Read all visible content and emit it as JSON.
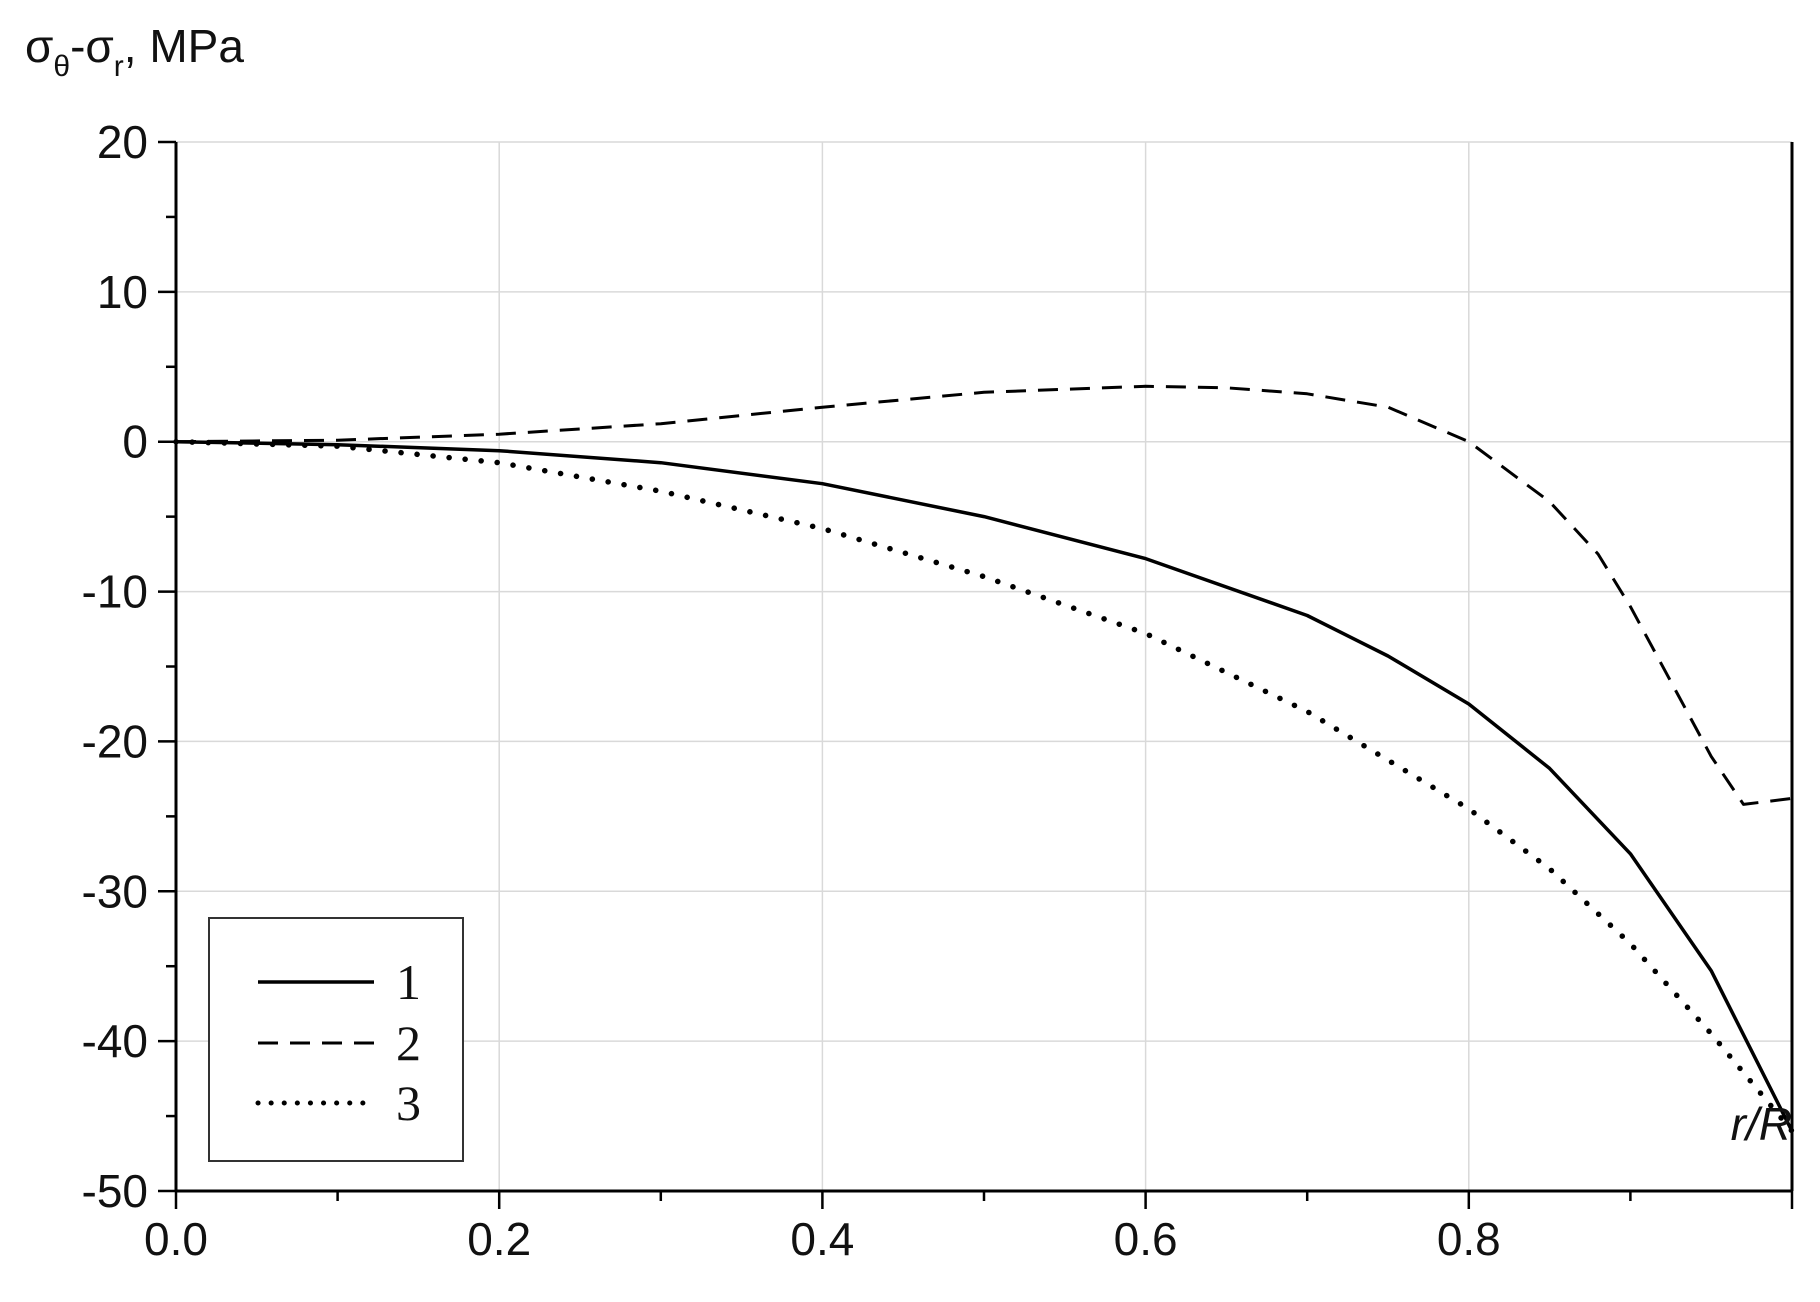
{
  "chart_data": {
    "type": "line",
    "title": "",
    "xlabel": "r/R",
    "ylabel_parts": {
      "sigma1": "σ",
      "sub1": "θ",
      "dash": "-",
      "sigma2": "σ",
      "sub2": "r",
      "unit": ", MPa"
    },
    "xlim": [
      0,
      1
    ],
    "ylim": [
      -50,
      20
    ],
    "x_ticks": [
      0,
      0.2,
      0.4,
      0.6,
      0.8
    ],
    "x_tick_labels": [
      "0.0",
      "0.2",
      "0.4",
      "0.6",
      "0.8"
    ],
    "y_ticks": [
      20,
      10,
      0,
      -10,
      -20,
      -30,
      -40,
      -50
    ],
    "y_tick_labels": [
      "20",
      "10",
      "0",
      "-10",
      "-20",
      "-30",
      "-40",
      "-50"
    ],
    "grid": true,
    "legend_position": "bottom-left",
    "series": [
      {
        "name": "1",
        "style": "solid",
        "x": [
          0,
          0.1,
          0.2,
          0.3,
          0.4,
          0.5,
          0.6,
          0.7,
          0.75,
          0.8,
          0.85,
          0.9,
          0.95,
          1.0
        ],
        "y": [
          0,
          -0.2,
          -0.6,
          -1.4,
          -2.8,
          -5.0,
          -7.8,
          -11.6,
          -14.3,
          -17.5,
          -21.8,
          -27.5,
          -35.3,
          -46.0
        ]
      },
      {
        "name": "2",
        "style": "dashed",
        "x": [
          0,
          0.1,
          0.2,
          0.3,
          0.4,
          0.5,
          0.6,
          0.65,
          0.7,
          0.75,
          0.8,
          0.85,
          0.88,
          0.9,
          0.93,
          0.95,
          0.97,
          1.0
        ],
        "y": [
          0,
          0.1,
          0.5,
          1.2,
          2.3,
          3.3,
          3.7,
          3.6,
          3.2,
          2.3,
          0.0,
          -4.0,
          -7.5,
          -11.0,
          -17.0,
          -21.0,
          -24.2,
          -23.8
        ]
      },
      {
        "name": "3",
        "style": "dotted",
        "x": [
          0,
          0.1,
          0.2,
          0.3,
          0.4,
          0.5,
          0.6,
          0.7,
          0.8,
          0.85,
          0.9,
          0.95,
          1.0
        ],
        "y": [
          0,
          -0.3,
          -1.4,
          -3.3,
          -5.8,
          -9.0,
          -12.8,
          -18.0,
          -24.5,
          -28.5,
          -33.5,
          -39.5,
          -46.0
        ]
      }
    ]
  }
}
